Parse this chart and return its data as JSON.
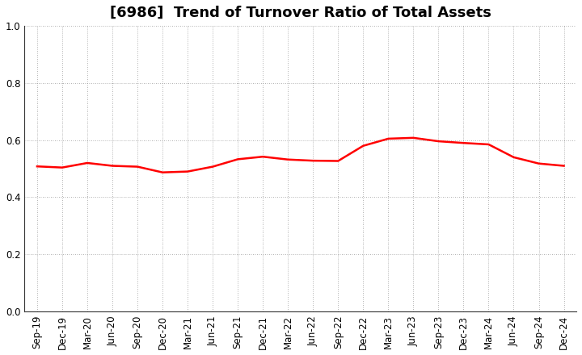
{
  "title": "[6986]  Trend of Turnover Ratio of Total Assets",
  "labels": [
    "Sep-19",
    "Dec-19",
    "Mar-20",
    "Jun-20",
    "Sep-20",
    "Dec-20",
    "Mar-21",
    "Jun-21",
    "Sep-21",
    "Dec-21",
    "Mar-22",
    "Jun-22",
    "Sep-22",
    "Dec-22",
    "Mar-23",
    "Jun-23",
    "Sep-23",
    "Dec-23",
    "Mar-24",
    "Jun-24",
    "Sep-24",
    "Dec-24"
  ],
  "values": [
    0.508,
    0.504,
    0.52,
    0.51,
    0.507,
    0.487,
    0.49,
    0.507,
    0.533,
    0.542,
    0.532,
    0.528,
    0.527,
    0.58,
    0.605,
    0.608,
    0.596,
    0.59,
    0.585,
    0.54,
    0.518,
    0.51
  ],
  "line_color": "#FF0000",
  "line_width": 1.8,
  "ylim": [
    0.0,
    1.0
  ],
  "yticks": [
    0.0,
    0.2,
    0.4,
    0.6,
    0.8,
    1.0
  ],
  "background_color": "#ffffff",
  "grid_color": "#999999",
  "title_fontsize": 13,
  "tick_fontsize": 8.5
}
